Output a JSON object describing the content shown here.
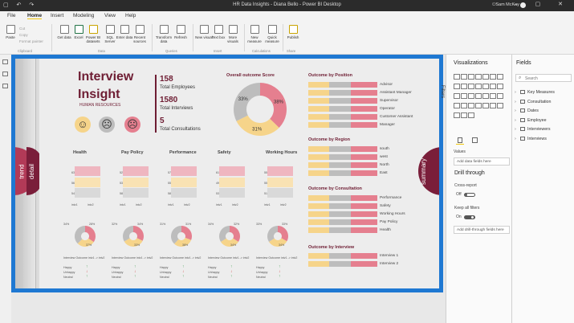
{
  "window": {
    "title": "HR Data Insights - Diana Bello - Power BI Desktop",
    "user": "Sam McKay"
  },
  "menu": [
    "File",
    "Home",
    "Insert",
    "Modeling",
    "View",
    "Help"
  ],
  "ribbon": {
    "clipboard": [
      "Paste",
      "Cut",
      "Copy",
      "Format painter"
    ],
    "buttons": [
      "Get data",
      "Excel",
      "Power BI datasets",
      "SQL Server",
      "Enter data",
      "Recent sources",
      "Transform data",
      "Refresh",
      "New visual",
      "Text box",
      "More visuals",
      "New measure",
      "Quick measure",
      "Publish"
    ],
    "groups": [
      "Clipboard",
      "Data",
      "Queries",
      "Insert",
      "Calculations",
      "Share"
    ]
  },
  "report": {
    "title_line1": "Interview",
    "title_line2": "Insight",
    "subtitle": "HUMAN RESOURCES",
    "kpis": [
      {
        "value": "158",
        "label": "Total Employees"
      },
      {
        "value": "1580",
        "label": "Total Interviews"
      },
      {
        "value": "5",
        "label": "Total Consultations"
      }
    ],
    "outcome_score": {
      "title": "Overall outcome Score",
      "slices": [
        {
          "label": "38%",
          "value": 38,
          "color": "#e57f8f"
        },
        {
          "label": "31%",
          "value": 31,
          "color": "#f6d48a"
        },
        {
          "label": "33%",
          "value": 33,
          "color": "#bdbdbd"
        }
      ]
    },
    "side_tabs": {
      "trend": "trend",
      "detail": "detail",
      "summary": "summary"
    },
    "metrics": [
      {
        "name": "Health",
        "vals": [
          "63",
          "56",
          "54"
        ],
        "donut": [
          "34%",
          "28%",
          "37%"
        ]
      },
      {
        "name": "Pay Policy",
        "vals": [
          "52",
          "53",
          "58"
        ],
        "donut": [
          "32%",
          "34%",
          "33%"
        ]
      },
      {
        "name": "Performance",
        "vals": [
          "57",
          "55",
          "58"
        ],
        "donut": [
          "31%",
          "31%",
          "38%"
        ]
      },
      {
        "name": "Safety",
        "vals": [
          "61",
          "49",
          "53"
        ],
        "donut": [
          "34%",
          "32%",
          "34%"
        ]
      },
      {
        "name": "Working Hours",
        "vals": [
          "55",
          "55",
          "51"
        ],
        "donut": [
          "33%",
          "33%",
          "34%"
        ]
      }
    ],
    "metric_axis": [
      "intv1",
      "intv2"
    ],
    "metric_table_header": [
      "Interview Outcome",
      "intv1 -> intv2"
    ],
    "metric_table_rows": [
      "Happy",
      "Unhappy",
      "Neutral"
    ],
    "outcome_by_position": {
      "title": "Outcome by Position",
      "items": [
        "Advisor",
        "Assistant Manager",
        "Supervisor",
        "Operator",
        "Customer Assistant",
        "Manager"
      ]
    },
    "outcome_by_region": {
      "title": "Outcome by Region",
      "items": [
        "south",
        "west",
        "North",
        "East"
      ]
    },
    "outcome_by_consultation": {
      "title": "Outcome by Consultation",
      "items": [
        "Performance",
        "Safety",
        "Working Hours",
        "Pay Policy",
        "Health"
      ]
    },
    "outcome_by_interview": {
      "title": "Outcome by Interview",
      "items": [
        "Interview 1",
        "Interview 2"
      ]
    }
  },
  "panels": {
    "filters": "Filters",
    "visualizations": "Visualizations",
    "fields": "Fields",
    "search_placeholder": "Search",
    "values_label": "Values",
    "add_data_fields": "Add data fields here",
    "drill_through": "Drill through",
    "cross_report": "Cross-report",
    "cross_report_state": "Off",
    "keep_all_filters": "Keep all filters",
    "keep_all_filters_state": "On",
    "add_drill_fields": "Add drill-through fields here",
    "field_tables": [
      "Key Measures",
      "Consultation",
      "Dates",
      "Employee",
      "Interviewers",
      "Interviews"
    ]
  },
  "colors": {
    "accent": "#1e78d2",
    "brand": "#6e1d33",
    "pink": "#e57f8f",
    "yellow": "#f6d48a",
    "grey": "#bdbdbd",
    "maroon": "#7a1e3a"
  }
}
